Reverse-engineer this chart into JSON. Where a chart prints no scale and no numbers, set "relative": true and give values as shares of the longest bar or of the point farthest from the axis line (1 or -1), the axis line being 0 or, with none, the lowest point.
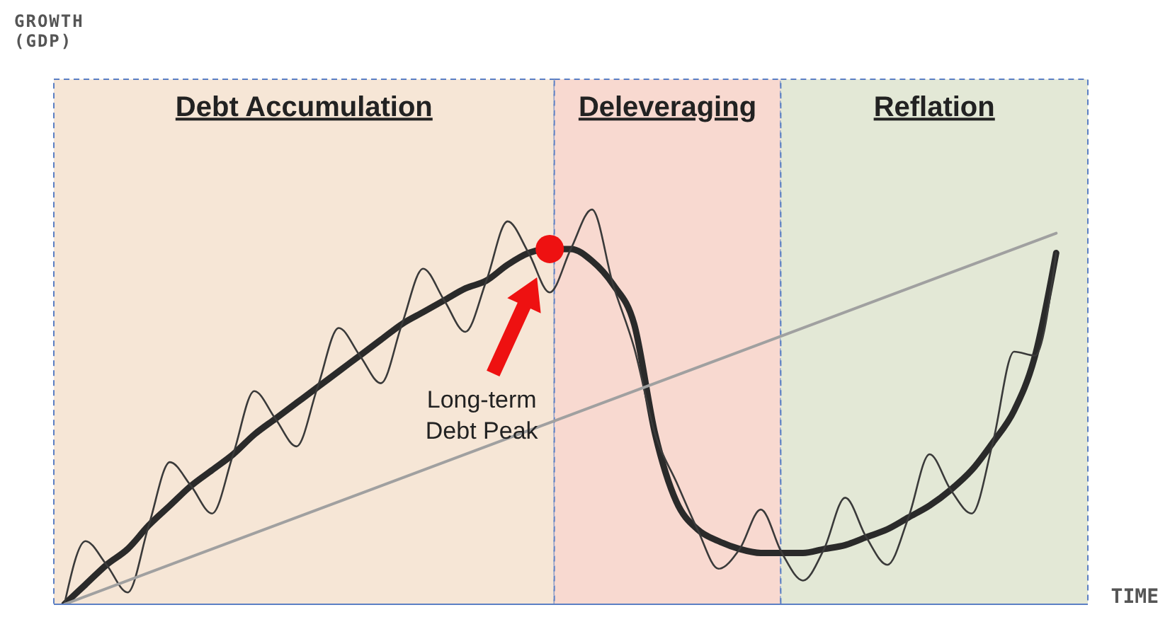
{
  "chart_data": {
    "type": "line",
    "relative": true,
    "xlabel": "TIME",
    "categories": [
      null,
      null,
      null,
      null,
      null,
      null,
      null,
      null,
      null,
      null,
      null,
      null,
      null,
      null,
      null,
      null,
      null,
      null,
      null,
      null,
      null,
      null,
      null,
      null,
      null,
      null,
      null,
      null,
      null,
      null,
      null,
      null,
      null,
      null,
      null,
      null,
      null,
      null,
      null,
      null,
      null,
      null,
      null,
      null,
      null,
      null,
      null,
      null,
      null
    ],
    "series": [
      {
        "color": "#2a2a2a",
        "values": [
          0,
          0.05,
          0.1,
          0.14,
          0.2,
          0.25,
          0.3,
          0.34,
          0.38,
          0.43,
          0.47,
          0.51,
          0.55,
          0.59,
          0.63,
          0.67,
          0.71,
          0.74,
          0.77,
          0.8,
          0.82,
          0.86,
          0.89,
          0.9,
          0.9,
          0.87,
          0.81,
          0.71,
          0.43,
          0.26,
          0.19,
          0.16,
          0.14,
          0.13,
          0.13,
          0.13,
          0.14,
          0.15,
          0.17,
          0.19,
          0.22,
          0.25,
          0.29,
          0.34,
          0.41,
          0.49,
          0.63,
          0.89,
          null
        ]
      },
      {
        "color": "#3a3a3a",
        "values": [
          0,
          0.16,
          0.1,
          0.03,
          0.2,
          0.36,
          0.3,
          0.23,
          0.38,
          0.54,
          0.47,
          0.4,
          0.55,
          0.7,
          0.63,
          0.56,
          0.71,
          0.85,
          0.77,
          0.69,
          0.82,
          0.97,
          0.89,
          0.79,
          0.9,
          1,
          0.81,
          0.65,
          0.43,
          0.31,
          0.19,
          0.09,
          0.14,
          0.24,
          0.13,
          0.06,
          0.14,
          0.27,
          0.17,
          0.1,
          0.22,
          0.38,
          0.29,
          0.23,
          0.41,
          0.64,
          0.63,
          0.89,
          null
        ]
      },
      {
        "color": "#a0a0a0",
        "values": [
          0,
          null,
          null,
          null,
          null,
          null,
          null,
          null,
          null,
          null,
          null,
          null,
          null,
          null,
          null,
          null,
          null,
          null,
          null,
          null,
          null,
          null,
          null,
          null,
          null,
          null,
          null,
          null,
          null,
          null,
          null,
          null,
          null,
          null,
          null,
          null,
          null,
          null,
          null,
          null,
          null,
          null,
          null,
          null,
          null,
          null,
          null,
          0.94,
          null
        ]
      }
    ],
    "annotations": [
      "Debt Accumulation",
      "Deleveraging",
      "Reflation",
      "Long-term Debt Peak",
      "GROWTH (GDP)"
    ]
  }
}
